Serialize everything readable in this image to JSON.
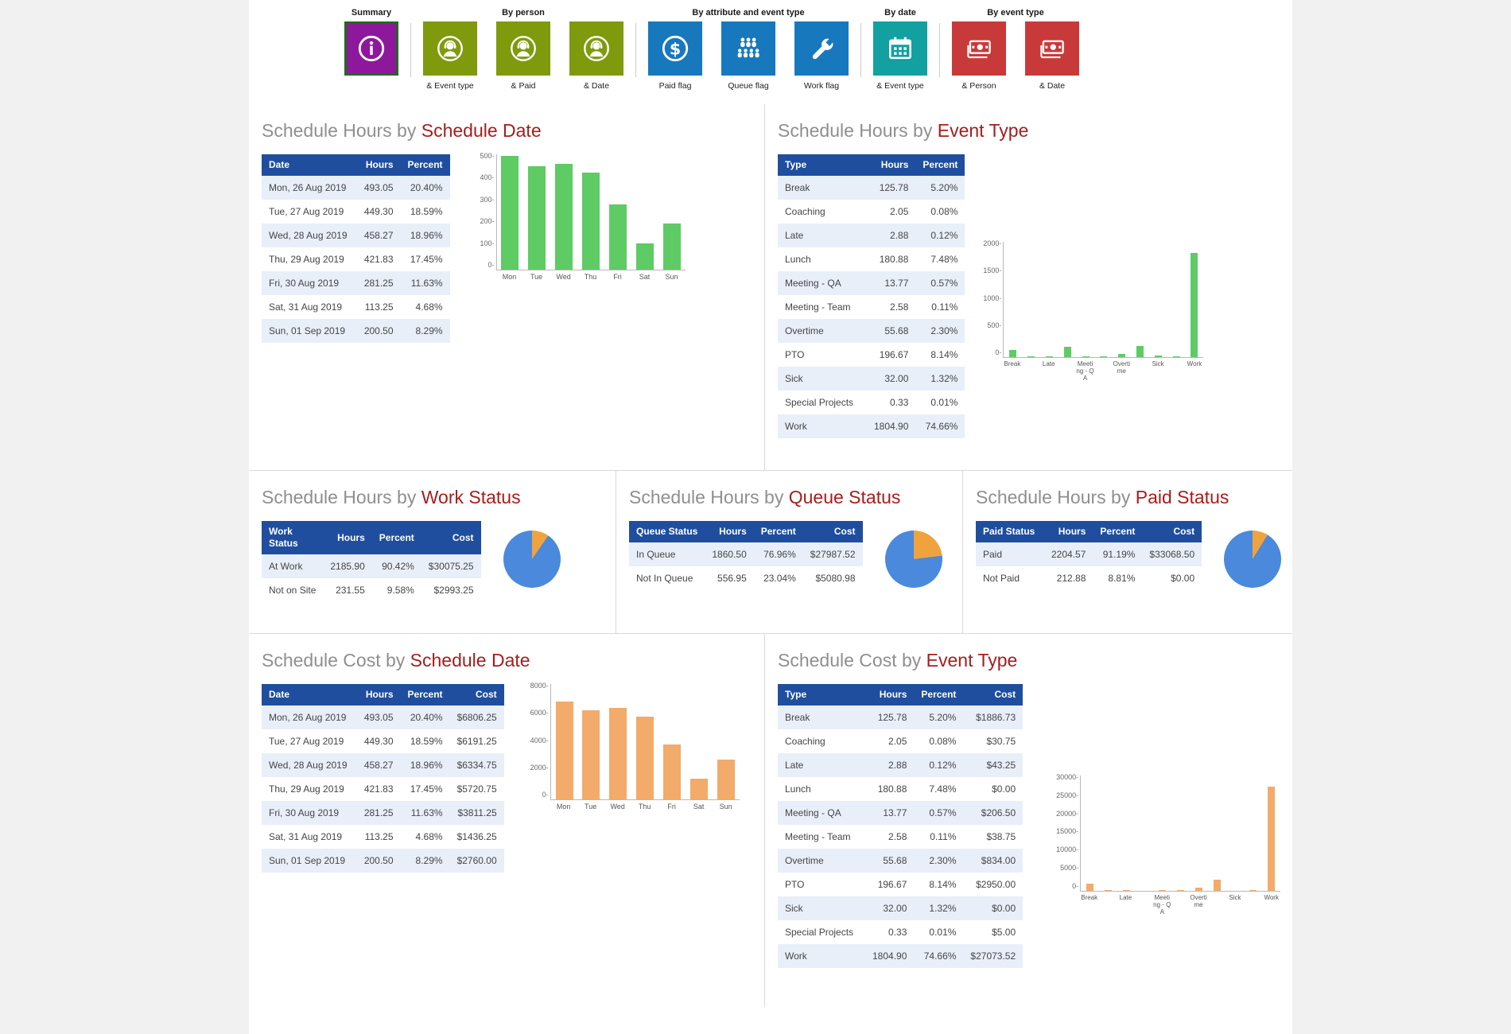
{
  "toolbar": {
    "groups": [
      {
        "label": "Summary",
        "tiles": [
          {
            "name": "summary",
            "icon": "info-icon",
            "color": "#8e189b",
            "selected": true,
            "sublabel": ""
          }
        ]
      },
      {
        "label": "By person",
        "tiles": [
          {
            "name": "by-person-and-event-type",
            "icon": "agent-icon",
            "color": "#7f9a0d",
            "sublabel": "& Event type"
          },
          {
            "name": "by-person-and-paid",
            "icon": "agent-icon",
            "color": "#7f9a0d",
            "sublabel": "& Paid"
          },
          {
            "name": "by-person-and-date",
            "icon": "agent-icon",
            "color": "#7f9a0d",
            "sublabel": "& Date"
          }
        ]
      },
      {
        "label": "By attribute and event type",
        "tiles": [
          {
            "name": "paid-flag",
            "icon": "dollar-icon",
            "color": "#1878be",
            "sublabel": "Paid flag"
          },
          {
            "name": "queue-flag",
            "icon": "people-icon",
            "color": "#1878be",
            "sublabel": "Queue flag"
          },
          {
            "name": "work-flag",
            "icon": "wrench-icon",
            "color": "#1878be",
            "sublabel": "Work flag"
          }
        ]
      },
      {
        "label": "By date",
        "tiles": [
          {
            "name": "by-date-and-event-type",
            "icon": "calendar-icon",
            "color": "#12a0a0",
            "sublabel": "& Event type"
          }
        ]
      },
      {
        "label": "By event type",
        "tiles": [
          {
            "name": "by-event-type-and-person",
            "icon": "money-icon",
            "color": "#c83a3a",
            "sublabel": "& Person"
          },
          {
            "name": "by-event-type-and-date",
            "icon": "money-icon",
            "color": "#c83a3a",
            "sublabel": "& Date"
          }
        ]
      }
    ]
  },
  "panels": {
    "hours_by_date": {
      "title_prefix": "Schedule Hours by ",
      "title_accent": "Schedule Date",
      "table": {
        "columns": [
          "Date",
          "Hours",
          "Percent"
        ],
        "rows": [
          [
            "Mon, 26 Aug 2019",
            "493.05",
            "20.40%"
          ],
          [
            "Tue, 27 Aug 2019",
            "449.30",
            "18.59%"
          ],
          [
            "Wed, 28 Aug 2019",
            "458.27",
            "18.96%"
          ],
          [
            "Thu, 29 Aug 2019",
            "421.83",
            "17.45%"
          ],
          [
            "Fri, 30 Aug 2019",
            "281.25",
            "11.63%"
          ],
          [
            "Sat, 31 Aug 2019",
            "113.25",
            "4.68%"
          ],
          [
            "Sun, 01 Sep 2019",
            "200.50",
            "8.29%"
          ]
        ]
      },
      "chart": {
        "type": "bar",
        "color": "#5ecb65",
        "ymax": 500,
        "yticks": [
          500,
          400,
          300,
          200,
          100,
          0
        ],
        "categories": [
          "Mon",
          "Tue",
          "Wed",
          "Thu",
          "Fri",
          "Sat",
          "Sun"
        ],
        "xlabels": [
          "Mon",
          "Tue",
          "Wed",
          "Thu",
          "Fri",
          "Sat",
          "Sun"
        ],
        "values": [
          493.05,
          449.3,
          458.27,
          421.83,
          281.25,
          113.25,
          200.5
        ]
      }
    },
    "hours_by_event": {
      "title_prefix": "Schedule Hours by ",
      "title_accent": "Event Type",
      "table": {
        "columns": [
          "Type",
          "Hours",
          "Percent"
        ],
        "rows": [
          [
            "Break",
            "125.78",
            "5.20%"
          ],
          [
            "Coaching",
            "2.05",
            "0.08%"
          ],
          [
            "Late",
            "2.88",
            "0.12%"
          ],
          [
            "Lunch",
            "180.88",
            "7.48%"
          ],
          [
            "Meeting - QA",
            "13.77",
            "0.57%"
          ],
          [
            "Meeting - Team",
            "2.58",
            "0.11%"
          ],
          [
            "Overtime",
            "55.68",
            "2.30%"
          ],
          [
            "PTO",
            "196.67",
            "8.14%"
          ],
          [
            "Sick",
            "32.00",
            "1.32%"
          ],
          [
            "Special Projects",
            "0.33",
            "0.01%"
          ],
          [
            "Work",
            "1804.90",
            "74.66%"
          ]
        ]
      },
      "chart": {
        "type": "bar",
        "color": "#5ecb65",
        "ymax": 2000,
        "yticks": [
          2000,
          1500,
          1000,
          500,
          0
        ],
        "categories": [
          "Break",
          "Coaching",
          "Late",
          "Lunch",
          "Meeting - QA",
          "Meeting - Team",
          "Overtime",
          "PTO",
          "Sick",
          "Special Projects",
          "Work"
        ],
        "xlabels": [
          "Break",
          "",
          "Late",
          "",
          "Meeting - QA",
          "",
          "Overtime",
          "",
          "Sick",
          "",
          "Work"
        ],
        "values": [
          125.78,
          2.05,
          2.88,
          180.88,
          13.77,
          2.58,
          55.68,
          196.67,
          32,
          0.33,
          1804.9
        ]
      }
    },
    "hours_by_work_status": {
      "title_prefix": "Schedule Hours by ",
      "title_accent": "Work Status",
      "table": {
        "columns": [
          "Work Status",
          "Hours",
          "Percent",
          "Cost"
        ],
        "rows": [
          [
            "At Work",
            "2185.90",
            "90.42%",
            "$30075.25"
          ],
          [
            "Not on Site",
            "231.55",
            "9.58%",
            "$2993.25"
          ]
        ]
      },
      "pie": {
        "slices": [
          {
            "label": "Not on Site",
            "percent": 9.58,
            "color": "#f0a33c"
          },
          {
            "label": "At Work",
            "percent": 90.42,
            "color": "#4a89dc"
          }
        ]
      }
    },
    "hours_by_queue_status": {
      "title_prefix": "Schedule Hours by ",
      "title_accent": "Queue Status",
      "table": {
        "columns": [
          "Queue Status",
          "Hours",
          "Percent",
          "Cost"
        ],
        "rows": [
          [
            "In Queue",
            "1860.50",
            "76.96%",
            "$27987.52"
          ],
          [
            "Not In Queue",
            "556.95",
            "23.04%",
            "$5080.98"
          ]
        ]
      },
      "pie": {
        "slices": [
          {
            "label": "Not In Queue",
            "percent": 23.04,
            "color": "#f0a33c"
          },
          {
            "label": "In Queue",
            "percent": 76.96,
            "color": "#4a89dc"
          }
        ]
      }
    },
    "hours_by_paid_status": {
      "title_prefix": "Schedule Hours by ",
      "title_accent": "Paid Status",
      "table": {
        "columns": [
          "Paid Status",
          "Hours",
          "Percent",
          "Cost"
        ],
        "rows": [
          [
            "Paid",
            "2204.57",
            "91.19%",
            "$33068.50"
          ],
          [
            "Not Paid",
            "212.88",
            "8.81%",
            "$0.00"
          ]
        ]
      },
      "pie": {
        "slices": [
          {
            "label": "Not Paid",
            "percent": 8.81,
            "color": "#f0a33c"
          },
          {
            "label": "Paid",
            "percent": 91.19,
            "color": "#4a89dc"
          }
        ]
      }
    },
    "cost_by_date": {
      "title_prefix": "Schedule Cost by ",
      "title_accent": "Schedule Date",
      "table": {
        "columns": [
          "Date",
          "Hours",
          "Percent",
          "Cost"
        ],
        "rows": [
          [
            "Mon, 26 Aug 2019",
            "493.05",
            "20.40%",
            "$6806.25"
          ],
          [
            "Tue, 27 Aug 2019",
            "449.30",
            "18.59%",
            "$6191.25"
          ],
          [
            "Wed, 28 Aug 2019",
            "458.27",
            "18.96%",
            "$6334.75"
          ],
          [
            "Thu, 29 Aug 2019",
            "421.83",
            "17.45%",
            "$5720.75"
          ],
          [
            "Fri, 30 Aug 2019",
            "281.25",
            "11.63%",
            "$3811.25"
          ],
          [
            "Sat, 31 Aug 2019",
            "113.25",
            "4.68%",
            "$1436.25"
          ],
          [
            "Sun, 01 Sep 2019",
            "200.50",
            "8.29%",
            "$2760.00"
          ]
        ]
      },
      "chart": {
        "type": "bar",
        "color": "#f2ab6a",
        "ymax": 8000,
        "yticks": [
          8000,
          6000,
          4000,
          2000,
          0
        ],
        "categories": [
          "Mon",
          "Tue",
          "Wed",
          "Thu",
          "Fri",
          "Sat",
          "Sun"
        ],
        "xlabels": [
          "Mon",
          "Tue",
          "Wed",
          "Thu",
          "Fri",
          "Sat",
          "Sun"
        ],
        "values": [
          6806.25,
          6191.25,
          6334.75,
          5720.75,
          3811.25,
          1436.25,
          2760
        ]
      }
    },
    "cost_by_event": {
      "title_prefix": "Schedule Cost by ",
      "title_accent": "Event Type",
      "table": {
        "columns": [
          "Type",
          "Hours",
          "Percent",
          "Cost"
        ],
        "rows": [
          [
            "Break",
            "125.78",
            "5.20%",
            "$1886.73"
          ],
          [
            "Coaching",
            "2.05",
            "0.08%",
            "$30.75"
          ],
          [
            "Late",
            "2.88",
            "0.12%",
            "$43.25"
          ],
          [
            "Lunch",
            "180.88",
            "7.48%",
            "$0.00"
          ],
          [
            "Meeting - QA",
            "13.77",
            "0.57%",
            "$206.50"
          ],
          [
            "Meeting - Team",
            "2.58",
            "0.11%",
            "$38.75"
          ],
          [
            "Overtime",
            "55.68",
            "2.30%",
            "$834.00"
          ],
          [
            "PTO",
            "196.67",
            "8.14%",
            "$2950.00"
          ],
          [
            "Sick",
            "32.00",
            "1.32%",
            "$0.00"
          ],
          [
            "Special Projects",
            "0.33",
            "0.01%",
            "$5.00"
          ],
          [
            "Work",
            "1804.90",
            "74.66%",
            "$27073.52"
          ]
        ]
      },
      "chart": {
        "type": "bar",
        "color": "#f2ab6a",
        "ymax": 30000,
        "yticks": [
          30000,
          25000,
          20000,
          15000,
          10000,
          5000,
          0
        ],
        "categories": [
          "Break",
          "Coaching",
          "Late",
          "Lunch",
          "Meeting - QA",
          "Meeting - Team",
          "Overtime",
          "PTO",
          "Sick",
          "Special Projects",
          "Work"
        ],
        "xlabels": [
          "Break",
          "",
          "Late",
          "",
          "Meeting - QA",
          "",
          "Overtime",
          "",
          "Sick",
          "",
          "Work"
        ],
        "values": [
          1886.73,
          30.75,
          43.25,
          0,
          206.5,
          38.75,
          834,
          2950,
          0,
          5,
          27073.52
        ]
      }
    }
  }
}
